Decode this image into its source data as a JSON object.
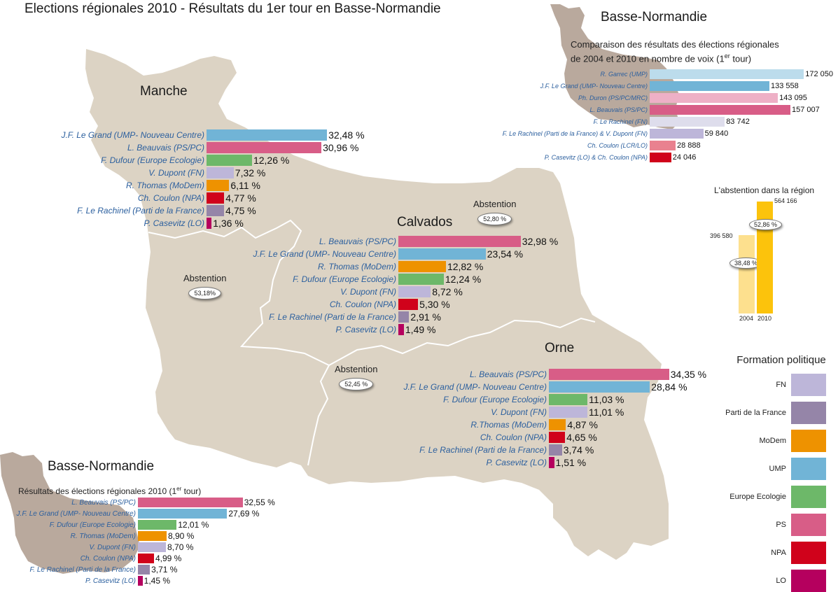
{
  "title": "Elections régionales 2010 - Résultats du 1er tour en Basse-Normandie",
  "colors": {
    "FN": "#bdb6d9",
    "Parti de la France": "#9585a8",
    "MoDem": "#ee9200",
    "UMP": "#71b4d6",
    "Europe Ecologie": "#6db869",
    "PS": "#d85d87",
    "NPA": "#d0021b",
    "LO": "#b5005e",
    "land": "#dcd3c4",
    "land_dark": "#b9a99d",
    "label_blue": "#2b5f9e"
  },
  "departments": [
    {
      "name": "Manche",
      "abstention_label": "Abstention",
      "abstention_value": "53,18%",
      "results": [
        {
          "label": "J.F. Le Grand (UMP- Nouveau Centre)",
          "party": "UMP",
          "value": 32.48,
          "display": "32,48 %"
        },
        {
          "label": "L. Beauvais (PS/PC)",
          "party": "PS",
          "value": 30.96,
          "display": "30,96 %"
        },
        {
          "label": "F. Dufour (Europe Ecologie)",
          "party": "Europe Ecologie",
          "value": 12.26,
          "display": "12,26 %"
        },
        {
          "label": "V. Dupont (FN)",
          "party": "FN",
          "value": 7.32,
          "display": "7,32 %"
        },
        {
          "label": "R. Thomas (MoDem)",
          "party": "MoDem",
          "value": 6.11,
          "display": "6,11 %"
        },
        {
          "label": "Ch. Coulon (NPA)",
          "party": "NPA",
          "value": 4.77,
          "display": "4,77 %"
        },
        {
          "label": "F. Le Rachinel (Parti de la France)",
          "party": "Parti de la France",
          "value": 4.75,
          "display": "4,75 %"
        },
        {
          "label": "P. Casevitz (LO)",
          "party": "LO",
          "value": 1.36,
          "display": "1,36 %"
        }
      ]
    },
    {
      "name": "Calvados",
      "abstention_label": "Abstention",
      "abstention_value": "52,80 %",
      "results": [
        {
          "label": "L. Beauvais (PS/PC)",
          "party": "PS",
          "value": 32.98,
          "display": "32,98 %"
        },
        {
          "label": "J.F. Le Grand (UMP- Nouveau Centre)",
          "party": "UMP",
          "value": 23.54,
          "display": "23,54 %"
        },
        {
          "label": "R. Thomas (MoDem)",
          "party": "MoDem",
          "value": 12.82,
          "display": "12,82 %"
        },
        {
          "label": "F. Dufour (Europe Ecologie)",
          "party": "Europe Ecologie",
          "value": 12.24,
          "display": "12,24 %"
        },
        {
          "label": "V. Dupont (FN)",
          "party": "FN",
          "value": 8.72,
          "display": "8,72 %"
        },
        {
          "label": "Ch. Coulon (NPA)",
          "party": "NPA",
          "value": 5.3,
          "display": "5,30 %"
        },
        {
          "label": "F. Le Rachinel (Parti de la France)",
          "party": "Parti de la France",
          "value": 2.91,
          "display": "2,91 %"
        },
        {
          "label": "P. Casevitz (LO)",
          "party": "LO",
          "value": 1.49,
          "display": "1,49 %"
        }
      ]
    },
    {
      "name": "Orne",
      "abstention_label": "Abstention",
      "abstention_value": "52,45 %",
      "results": [
        {
          "label": "L. Beauvais (PS/PC)",
          "party": "PS",
          "value": 34.35,
          "display": "34,35 %"
        },
        {
          "label": "J.F. Le Grand (UMP- Nouveau Centre)",
          "party": "UMP",
          "value": 28.84,
          "display": "28,84 %"
        },
        {
          "label": "F. Dufour (Europe Ecologie)",
          "party": "Europe Ecologie",
          "value": 11.03,
          "display": "11,03 %"
        },
        {
          "label": "V. Dupont (FN)",
          "party": "FN",
          "value": 11.01,
          "display": "11,01 %"
        },
        {
          "label": "R.Thomas (MoDem)",
          "party": "MoDem",
          "value": 4.87,
          "display": "4,87 %"
        },
        {
          "label": "Ch. Coulon (NPA)",
          "party": "NPA",
          "value": 4.65,
          "display": "4,65 %"
        },
        {
          "label": "F. Le Rachinel (Parti de la France)",
          "party": "Parti de la France",
          "value": 3.74,
          "display": "3,74 %"
        },
        {
          "label": "P. Casevitz (LO)",
          "party": "LO",
          "value": 1.51,
          "display": "1,51 %"
        }
      ]
    }
  ],
  "region_results": {
    "heading": "Basse-Normandie",
    "title_main": "Résultats des élections régionales 2010 (1",
    "title_sup": "er",
    "title_end": " tour)",
    "results": [
      {
        "label": "L. Beauvais (PS/PC)",
        "party": "PS",
        "value": 32.55,
        "display": "32,55 %"
      },
      {
        "label": "J.F. Le Grand (UMP- Nouveau Centre)",
        "party": "UMP",
        "value": 27.69,
        "display": "27,69 %"
      },
      {
        "label": "F. Dufour (Europe Ecologie)",
        "party": "Europe Ecologie",
        "value": 12.01,
        "display": "12,01 %"
      },
      {
        "label": "R. Thomas (MoDem)",
        "party": "MoDem",
        "value": 8.9,
        "display": "8,90 %"
      },
      {
        "label": "V. Dupont (FN)",
        "party": "FN",
        "value": 8.7,
        "display": "8,70 %"
      },
      {
        "label": "Ch. Coulon (NPA)",
        "party": "NPA",
        "value": 4.99,
        "display": "4,99 %"
      },
      {
        "label": "F. Le Rachinel (Parti de la France)",
        "party": "Parti de la France",
        "value": 3.71,
        "display": "3,71 %"
      },
      {
        "label": "P. Casevitz (LO)",
        "party": "LO",
        "value": 1.45,
        "display": "1,45 %"
      }
    ]
  },
  "comparison": {
    "heading": "Basse-Normandie",
    "title_line1": "Comparaison des résultats des élections régionales",
    "title_line2": "de 2004 et 2010 en nombre de voix  (1",
    "title_sup": "er",
    "title_end": " tour)",
    "results": [
      {
        "label": "R. Garrec (UMP)",
        "color": "#bcdcec",
        "value": 172050,
        "display": "172 050"
      },
      {
        "label": "J.F. Le Grand (UMP- Nouveau Centre)",
        "color": "#71b4d6",
        "value": 133558,
        "display": "133 558"
      },
      {
        "label": "Ph. Duron (PS/PC/MRC)",
        "color": "#eeb0c6",
        "value": 143095,
        "display": "143 095"
      },
      {
        "label": "L. Beauvais (PS/PC)",
        "color": "#d85d87",
        "value": 157007,
        "display": "157 007"
      },
      {
        "label": "F. Le Rachinel (FN)",
        "color": "#deddec",
        "value": 83742,
        "display": "83 742"
      },
      {
        "label": "F. Le Rachinel (Parti de la France) & V. Dupont (FN)",
        "color": "#bdb6d9",
        "value": 59840,
        "display": "59 840"
      },
      {
        "label": "Ch. Coulon (LCR/LO)",
        "color": "#e9818f",
        "value": 28888,
        "display": "28 888"
      },
      {
        "label": "P. Casevitz (LO) & Ch. Coulon (NPA)",
        "color": "#d0021b",
        "value": 24046,
        "display": "24 046"
      }
    ]
  },
  "abstention_region": {
    "title": "L'abstention dans la région",
    "bars": [
      {
        "year": "2004",
        "votes": 396580,
        "votes_display": "396 580",
        "percent": "38,48 %",
        "color": "#fde08e"
      },
      {
        "year": "2010",
        "votes": 564166,
        "votes_display": "564 166",
        "percent": "52,86 %",
        "color": "#fcc30c"
      }
    ]
  },
  "legend": {
    "title": "Formation politique",
    "items": [
      "FN",
      "Parti de la France",
      "MoDem",
      "UMP",
      "Europe Ecologie",
      "PS",
      "NPA",
      "LO"
    ]
  }
}
